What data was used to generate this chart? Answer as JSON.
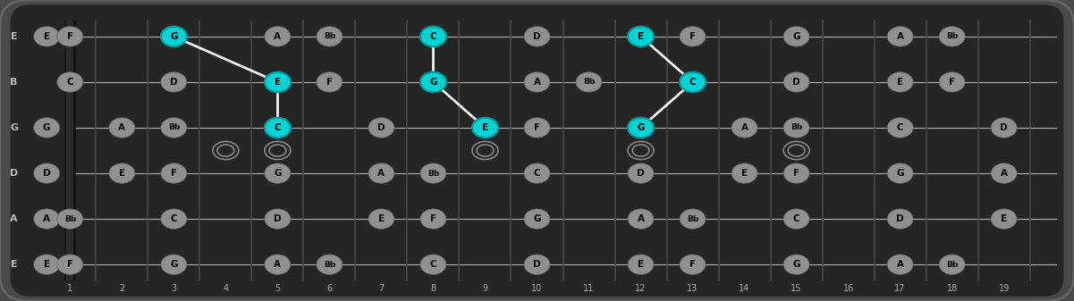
{
  "strings_labels": [
    "E",
    "B",
    "G",
    "D",
    "A",
    "E"
  ],
  "fret_count": 19,
  "bg_outer": "#4a4a4a",
  "bg_inner": "#252525",
  "fret_color": "#484848",
  "string_color": "#cccccc",
  "note_bg_color": "#909090",
  "highlight_color": "#00d4d4",
  "highlight_edge": "#009999",
  "note_text_color": "#000000",
  "fret_label_color": "#aaaaaa",
  "string_label_color": "#bbbbbb",
  "figsize": [
    12.01,
    3.37
  ],
  "dpi": 100,
  "notes": [
    {
      "s": 6,
      "f": 0,
      "n": "E",
      "h": false
    },
    {
      "s": 6,
      "f": 1,
      "n": "F",
      "h": false
    },
    {
      "s": 6,
      "f": 3,
      "n": "G",
      "h": true
    },
    {
      "s": 6,
      "f": 5,
      "n": "A",
      "h": false
    },
    {
      "s": 6,
      "f": 6,
      "n": "Bb",
      "h": false
    },
    {
      "s": 6,
      "f": 8,
      "n": "C",
      "h": true
    },
    {
      "s": 6,
      "f": 10,
      "n": "D",
      "h": false
    },
    {
      "s": 6,
      "f": 12,
      "n": "E",
      "h": true
    },
    {
      "s": 6,
      "f": 13,
      "n": "F",
      "h": false
    },
    {
      "s": 6,
      "f": 15,
      "n": "G",
      "h": false
    },
    {
      "s": 6,
      "f": 17,
      "n": "A",
      "h": false
    },
    {
      "s": 6,
      "f": 18,
      "n": "Bb",
      "h": false
    },
    {
      "s": 5,
      "f": 1,
      "n": "C",
      "h": false
    },
    {
      "s": 5,
      "f": 3,
      "n": "D",
      "h": false
    },
    {
      "s": 5,
      "f": 5,
      "n": "E",
      "h": true
    },
    {
      "s": 5,
      "f": 6,
      "n": "F",
      "h": false
    },
    {
      "s": 5,
      "f": 8,
      "n": "G",
      "h": true
    },
    {
      "s": 5,
      "f": 10,
      "n": "A",
      "h": false
    },
    {
      "s": 5,
      "f": 11,
      "n": "Bb",
      "h": false
    },
    {
      "s": 5,
      "f": 13,
      "n": "C",
      "h": true
    },
    {
      "s": 5,
      "f": 15,
      "n": "D",
      "h": false
    },
    {
      "s": 5,
      "f": 17,
      "n": "E",
      "h": false
    },
    {
      "s": 5,
      "f": 18,
      "n": "F",
      "h": false
    },
    {
      "s": 4,
      "f": 0,
      "n": "G",
      "h": false
    },
    {
      "s": 4,
      "f": 2,
      "n": "A",
      "h": false
    },
    {
      "s": 4,
      "f": 3,
      "n": "Bb",
      "h": false
    },
    {
      "s": 4,
      "f": 5,
      "n": "C",
      "h": true
    },
    {
      "s": 4,
      "f": 7,
      "n": "D",
      "h": false
    },
    {
      "s": 4,
      "f": 9,
      "n": "E",
      "h": true
    },
    {
      "s": 4,
      "f": 10,
      "n": "F",
      "h": false
    },
    {
      "s": 4,
      "f": 12,
      "n": "G",
      "h": true
    },
    {
      "s": 4,
      "f": 14,
      "n": "A",
      "h": false
    },
    {
      "s": 4,
      "f": 15,
      "n": "Bb",
      "h": false
    },
    {
      "s": 4,
      "f": 17,
      "n": "C",
      "h": false
    },
    {
      "s": 4,
      "f": 19,
      "n": "D",
      "h": false
    },
    {
      "s": 3,
      "f": 0,
      "n": "D",
      "h": false
    },
    {
      "s": 3,
      "f": 2,
      "n": "E",
      "h": false
    },
    {
      "s": 3,
      "f": 3,
      "n": "F",
      "h": false
    },
    {
      "s": 3,
      "f": 5,
      "n": "G",
      "h": false
    },
    {
      "s": 3,
      "f": 7,
      "n": "A",
      "h": false
    },
    {
      "s": 3,
      "f": 8,
      "n": "Bb",
      "h": false
    },
    {
      "s": 3,
      "f": 10,
      "n": "C",
      "h": false
    },
    {
      "s": 3,
      "f": 12,
      "n": "D",
      "h": false
    },
    {
      "s": 3,
      "f": 14,
      "n": "E",
      "h": false
    },
    {
      "s": 3,
      "f": 15,
      "n": "F",
      "h": false
    },
    {
      "s": 3,
      "f": 17,
      "n": "G",
      "h": false
    },
    {
      "s": 3,
      "f": 19,
      "n": "A",
      "h": false
    },
    {
      "s": 2,
      "f": 0,
      "n": "A",
      "h": false
    },
    {
      "s": 2,
      "f": 1,
      "n": "Bb",
      "h": false
    },
    {
      "s": 2,
      "f": 3,
      "n": "C",
      "h": false
    },
    {
      "s": 2,
      "f": 5,
      "n": "D",
      "h": false
    },
    {
      "s": 2,
      "f": 7,
      "n": "E",
      "h": false
    },
    {
      "s": 2,
      "f": 8,
      "n": "F",
      "h": false
    },
    {
      "s": 2,
      "f": 10,
      "n": "G",
      "h": false
    },
    {
      "s": 2,
      "f": 12,
      "n": "A",
      "h": false
    },
    {
      "s": 2,
      "f": 13,
      "n": "Bb",
      "h": false
    },
    {
      "s": 2,
      "f": 15,
      "n": "C",
      "h": false
    },
    {
      "s": 2,
      "f": 17,
      "n": "D",
      "h": false
    },
    {
      "s": 2,
      "f": 19,
      "n": "E",
      "h": false
    },
    {
      "s": 1,
      "f": 0,
      "n": "E",
      "h": false
    },
    {
      "s": 1,
      "f": 1,
      "n": "F",
      "h": false
    },
    {
      "s": 1,
      "f": 3,
      "n": "G",
      "h": false
    },
    {
      "s": 1,
      "f": 5,
      "n": "A",
      "h": false
    },
    {
      "s": 1,
      "f": 6,
      "n": "Bb",
      "h": false
    },
    {
      "s": 1,
      "f": 8,
      "n": "C",
      "h": false
    },
    {
      "s": 1,
      "f": 10,
      "n": "D",
      "h": false
    },
    {
      "s": 1,
      "f": 12,
      "n": "E",
      "h": false
    },
    {
      "s": 1,
      "f": 13,
      "n": "F",
      "h": false
    },
    {
      "s": 1,
      "f": 15,
      "n": "G",
      "h": false
    },
    {
      "s": 1,
      "f": 17,
      "n": "A",
      "h": false
    },
    {
      "s": 1,
      "f": 18,
      "n": "Bb",
      "h": false
    }
  ],
  "connectors": [
    {
      "s1": 6,
      "f1": 3,
      "s2": 5,
      "f2": 5
    },
    {
      "s1": 5,
      "f1": 5,
      "s2": 4,
      "f2": 5
    },
    {
      "s1": 6,
      "f1": 8,
      "s2": 5,
      "f2": 8
    },
    {
      "s1": 5,
      "f1": 8,
      "s2": 4,
      "f2": 9
    },
    {
      "s1": 6,
      "f1": 12,
      "s2": 5,
      "f2": 13
    },
    {
      "s1": 5,
      "f1": 13,
      "s2": 4,
      "f2": 12
    }
  ],
  "open_rings": [
    {
      "s": 4,
      "f": 3
    },
    {
      "s": 3,
      "f": 4
    },
    {
      "s": 4,
      "f": 5
    },
    {
      "s": 3,
      "f": 5
    },
    {
      "s": 4,
      "f": 9
    },
    {
      "s": 3,
      "f": 9
    },
    {
      "s": 4,
      "f": 12
    },
    {
      "s": 3,
      "f": 12
    },
    {
      "s": 4,
      "f": 15
    },
    {
      "s": 3,
      "f": 16
    }
  ]
}
